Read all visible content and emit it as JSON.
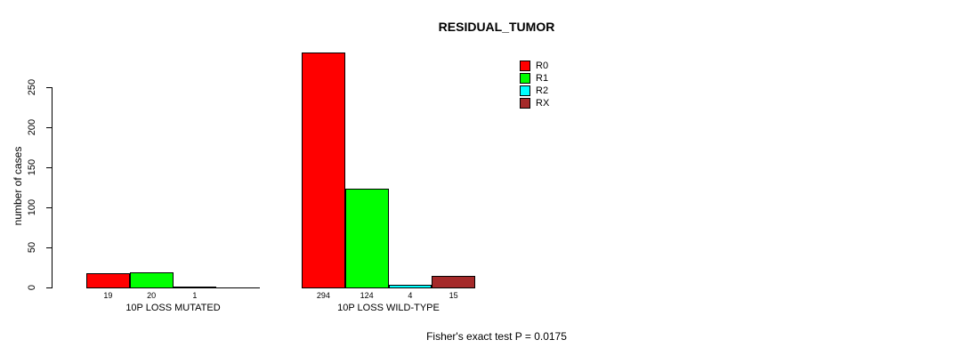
{
  "title": "RESIDUAL_TUMOR",
  "footer": "Fisher's exact test P = 0.0175",
  "chart_data": {
    "type": "bar",
    "title": "RESIDUAL_TUMOR",
    "xlabel": "",
    "ylabel": "number of cases",
    "ylim": [
      0,
      250
    ],
    "yticks": [
      0,
      50,
      100,
      150,
      200,
      250
    ],
    "grid": false,
    "legend_position": "top-right",
    "legend": [
      {
        "label": "R0",
        "color": "#FF0000"
      },
      {
        "label": "R1",
        "color": "#00FF00"
      },
      {
        "label": "R2",
        "color": "#00FFFF"
      },
      {
        "label": "RX",
        "color": "#A52A2A"
      }
    ],
    "groups": [
      {
        "label": "10P LOSS MUTATED",
        "slots": 4,
        "bars": [
          {
            "series": "R0",
            "value": 19,
            "color": "#FF0000"
          },
          {
            "series": "R1",
            "value": 20,
            "color": "#00FF00"
          },
          {
            "series": "R2",
            "value": 1,
            "color": "#00FFFF"
          }
        ]
      },
      {
        "label": "10P LOSS WILD-TYPE",
        "slots": 4,
        "bars": [
          {
            "series": "R0",
            "value": 294,
            "color": "#FF0000"
          },
          {
            "series": "R1",
            "value": 124,
            "color": "#00FF00"
          },
          {
            "series": "R2",
            "value": 4,
            "color": "#00FFFF"
          },
          {
            "series": "RX",
            "value": 15,
            "color": "#A52A2A"
          }
        ]
      }
    ],
    "annotation": "Fisher's exact test P = 0.0175"
  }
}
